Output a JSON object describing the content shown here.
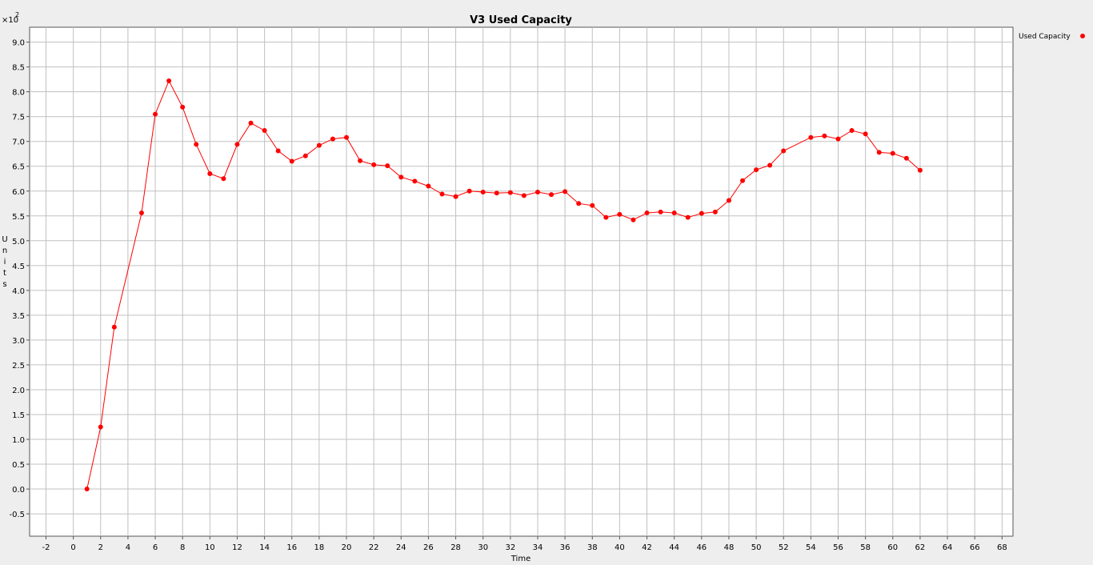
{
  "chart_data": {
    "type": "line",
    "title": "V3 Used Capacity",
    "xlabel": "Time",
    "ylabel": "Units",
    "y_multiplier_label": "×10",
    "y_multiplier_exp": "2",
    "xlim": [
      -3.2,
      68.8
    ],
    "ylim": [
      -0.95,
      9.3
    ],
    "x_ticks": [
      -2,
      0,
      2,
      4,
      6,
      8,
      10,
      12,
      14,
      16,
      18,
      20,
      22,
      24,
      26,
      28,
      30,
      32,
      34,
      36,
      38,
      40,
      42,
      44,
      46,
      48,
      50,
      52,
      54,
      56,
      58,
      60,
      62,
      64,
      66,
      68
    ],
    "y_ticks": [
      -0.5,
      0.0,
      0.5,
      1.0,
      1.5,
      2.0,
      2.5,
      3.0,
      3.5,
      4.0,
      4.5,
      5.0,
      5.5,
      6.0,
      6.5,
      7.0,
      7.5,
      8.0,
      8.5,
      9.0
    ],
    "y_tick_labels": [
      "-0.5",
      "0.0",
      "0.5",
      "1.0",
      "1.5",
      "2.0",
      "2.5",
      "3.0",
      "3.5",
      "4.0",
      "4.5",
      "5.0",
      "5.5",
      "6.0",
      "6.5",
      "7.0",
      "7.5",
      "8.0",
      "8.5",
      "9.0"
    ],
    "grid": true,
    "legend_position": "top-right",
    "series": [
      {
        "name": "Used Capacity",
        "color": "#ff0000",
        "x": [
          1,
          2,
          3,
          5,
          6,
          7,
          8,
          9,
          10,
          11,
          12,
          13,
          14,
          15,
          16,
          17,
          18,
          19,
          20,
          21,
          22,
          23,
          24,
          25,
          26,
          27,
          28,
          29,
          30,
          31,
          32,
          33,
          34,
          35,
          36,
          37,
          38,
          39,
          40,
          41,
          42,
          43,
          44,
          45,
          46,
          47,
          48,
          49,
          50,
          51,
          52,
          54,
          55,
          56,
          57,
          58,
          59,
          60,
          61,
          62
        ],
        "y": [
          0.0,
          1.25,
          3.26,
          5.56,
          7.55,
          8.22,
          7.69,
          6.94,
          6.35,
          6.25,
          6.94,
          7.37,
          7.22,
          6.81,
          6.6,
          6.71,
          6.92,
          7.05,
          7.08,
          6.61,
          6.53,
          6.51,
          6.28,
          6.2,
          6.1,
          5.94,
          5.89,
          6.0,
          5.98,
          5.96,
          5.97,
          5.91,
          5.98,
          5.93,
          5.99,
          5.75,
          5.71,
          5.47,
          5.53,
          5.42,
          5.56,
          5.58,
          5.56,
          5.47,
          5.55,
          5.58,
          5.81,
          6.21,
          6.43,
          6.52,
          6.81,
          7.08,
          7.11,
          7.05,
          7.22,
          7.15,
          6.78,
          6.76,
          6.66,
          6.42
        ]
      }
    ]
  }
}
